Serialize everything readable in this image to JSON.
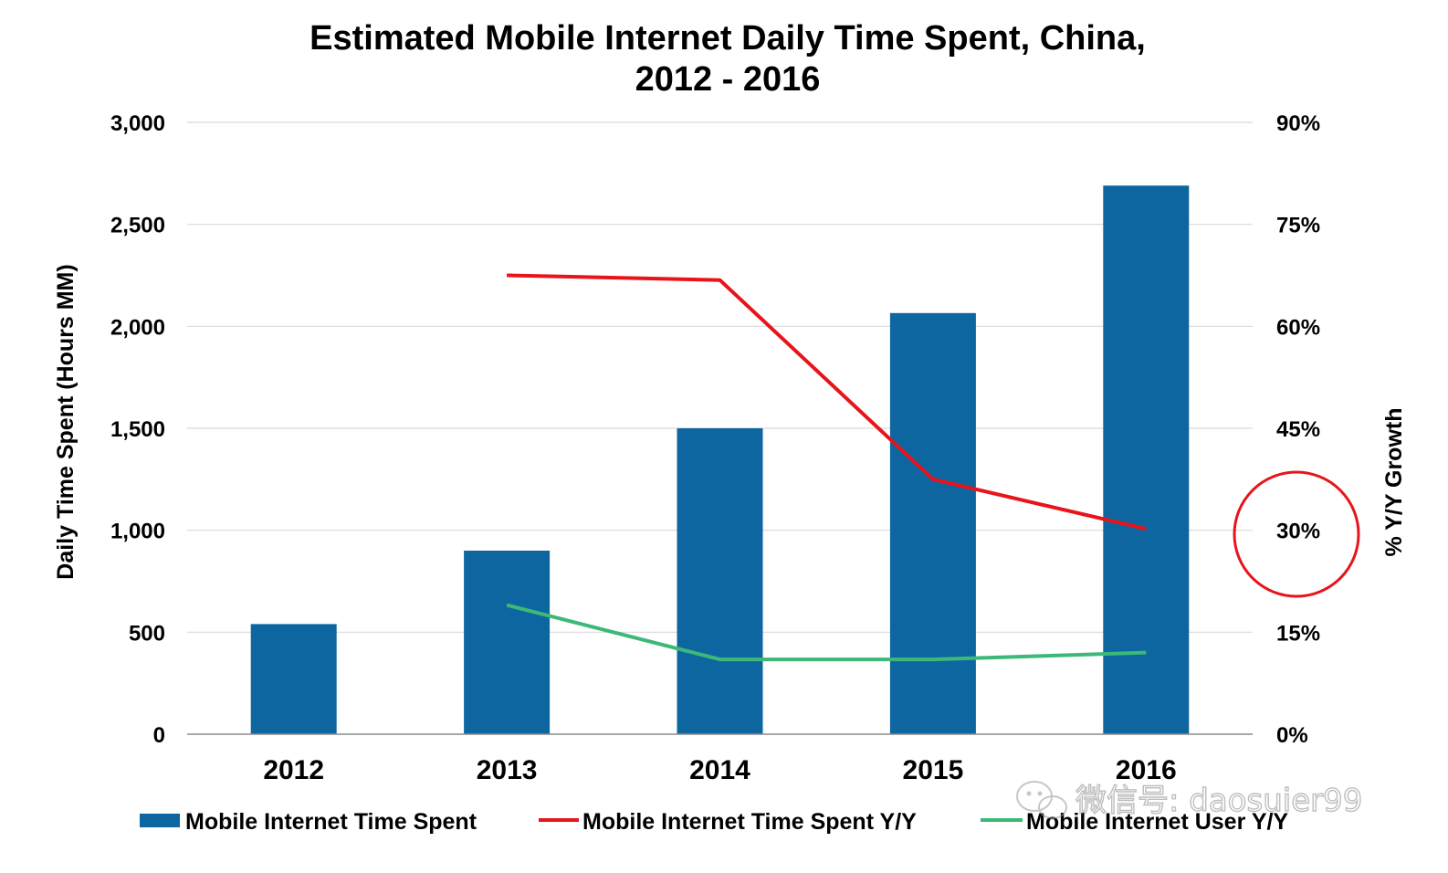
{
  "chart_data": {
    "type": "bar",
    "title_line1": "Estimated Mobile Internet Daily Time Spent, China,",
    "title_line2": "2012 - 2016",
    "ylabel": "Daily Time Spent (Hours MM)",
    "y2label": "% Y/Y Growth",
    "categories": [
      "2012",
      "2013",
      "2014",
      "2015",
      "2016"
    ],
    "ylim": [
      0,
      3000
    ],
    "y_ticks": [
      "0",
      "500",
      "1,000",
      "1,500",
      "2,000",
      "2,500",
      "3,000"
    ],
    "y_tick_values": [
      0,
      500,
      1000,
      1500,
      2000,
      2500,
      3000
    ],
    "y2lim": [
      0,
      90
    ],
    "y2_ticks": [
      "0%",
      "15%",
      "30%",
      "45%",
      "60%",
      "75%",
      "90%"
    ],
    "y2_tick_values": [
      0,
      15,
      30,
      45,
      60,
      75,
      90
    ],
    "grid": true,
    "legend_position": "bottom",
    "series": [
      {
        "name": "Mobile Internet Time Spent",
        "type": "bar",
        "axis": "left",
        "values": [
          540,
          900,
          1500,
          2065,
          2690
        ],
        "color": "#0e66a0"
      },
      {
        "name": "Mobile Internet Time Spent Y/Y",
        "type": "line",
        "axis": "right",
        "values": [
          null,
          67.5,
          66.8,
          37.5,
          30.2
        ],
        "color": "#e8141b"
      },
      {
        "name": "Mobile Internet User Y/Y",
        "type": "line",
        "axis": "right",
        "values": [
          null,
          19,
          11,
          11,
          12
        ],
        "color": "#3cb878"
      }
    ],
    "annotation_circle": {
      "color": "#e8141b",
      "around_value": "30%"
    }
  },
  "watermark": {
    "text": "微信号: daosuier99",
    "icon": "wechat-icon"
  }
}
